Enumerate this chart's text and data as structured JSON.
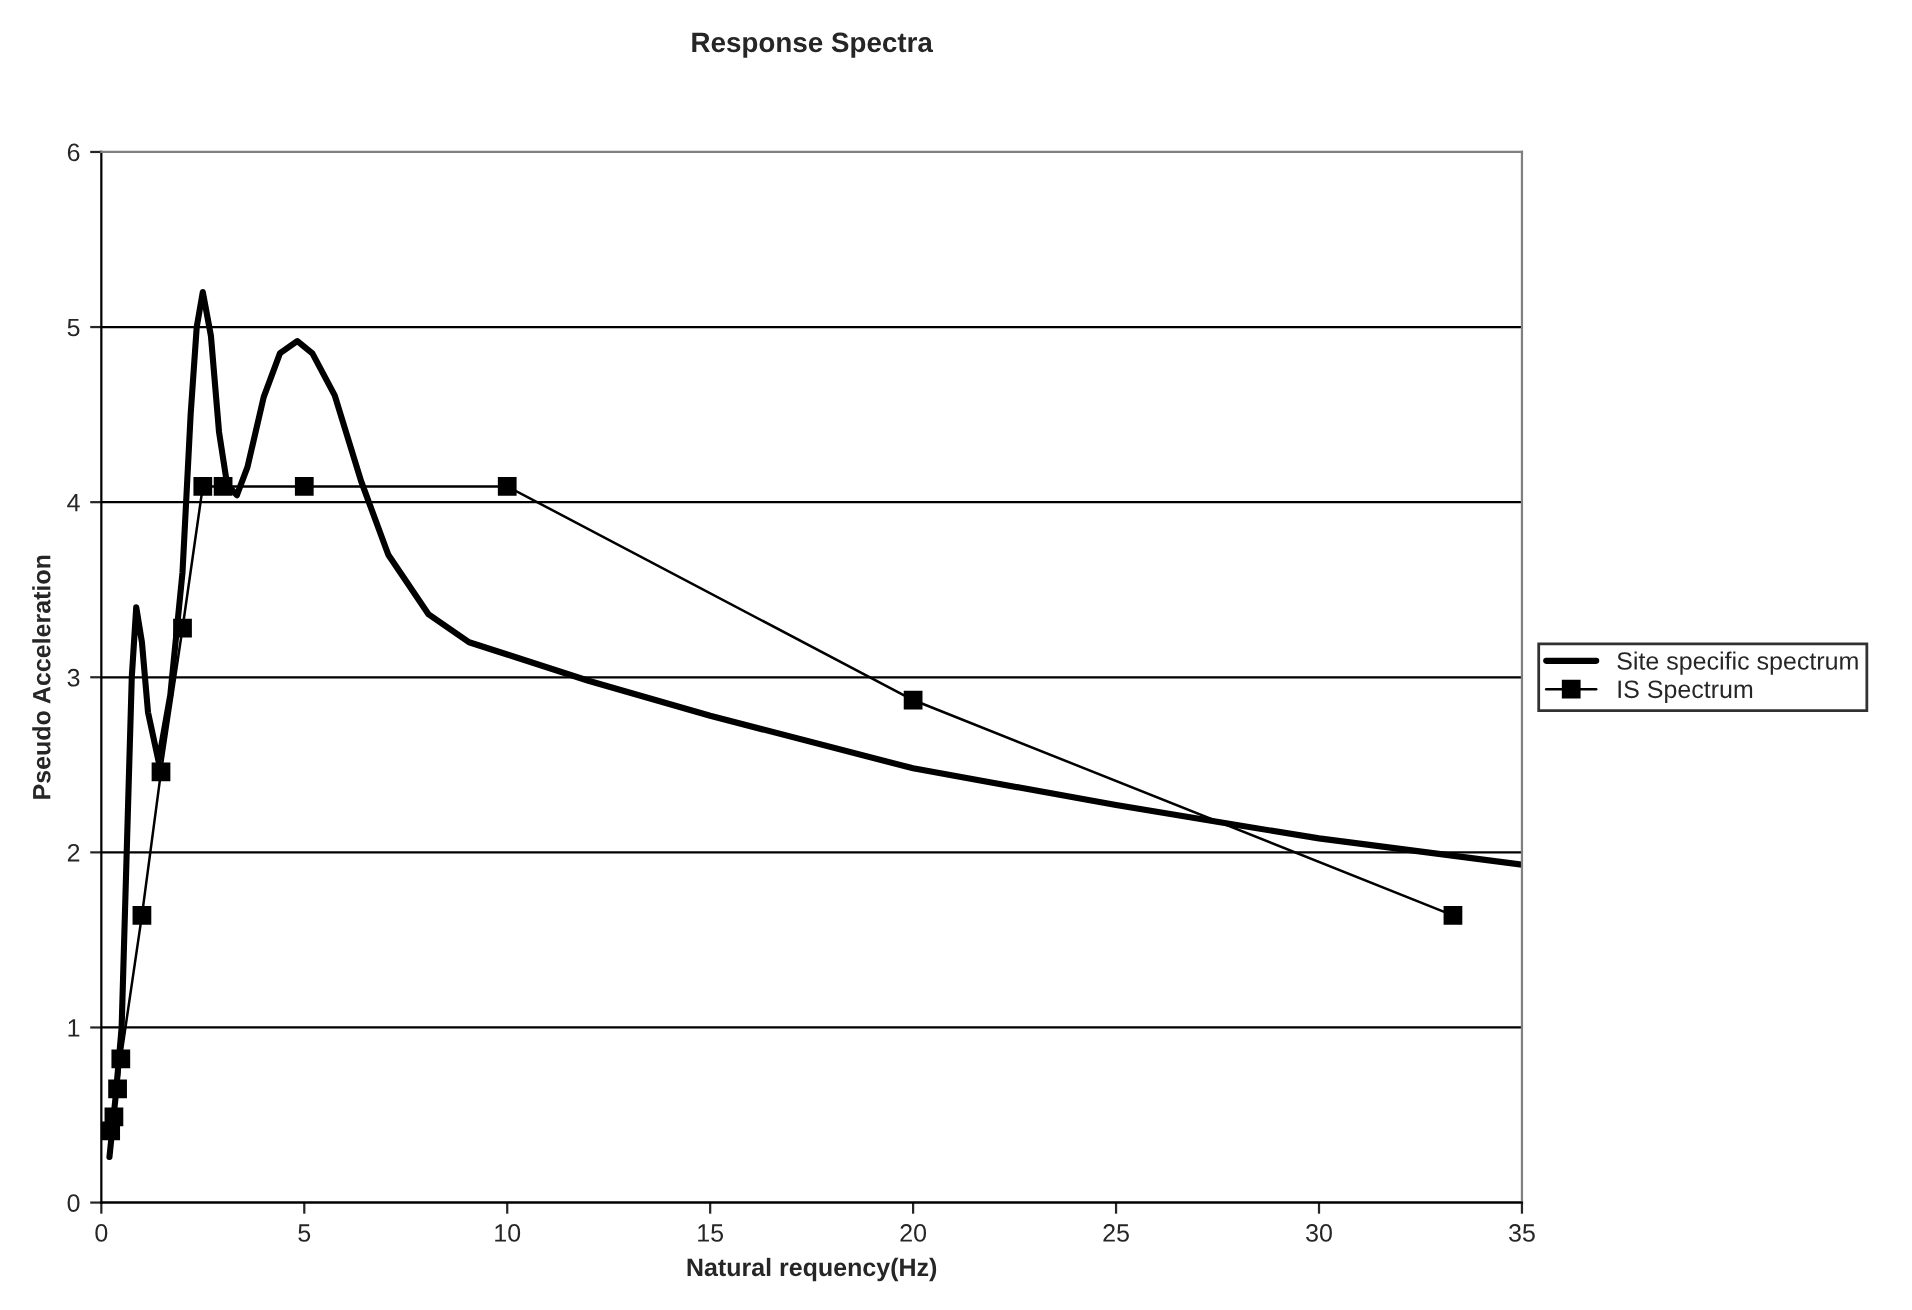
{
  "chart_data": {
    "type": "line",
    "title": "Response Spectra",
    "xlabel": "Natural requency(Hz)",
    "ylabel": "Pseudo Acceleration",
    "xlim": [
      0,
      35
    ],
    "xticks": [
      0,
      5,
      10,
      15,
      20,
      25,
      30,
      35
    ],
    "ylim": [
      0,
      6
    ],
    "yticks": [
      0,
      1,
      2,
      3,
      4,
      5,
      6
    ],
    "grid": "y",
    "legend": "right",
    "series": [
      {
        "name": "Site specific spectrum",
        "color": "#000000",
        "marker": "none",
        "x": [
          0.2,
          0.35,
          0.5,
          0.65,
          0.75,
          0.86,
          1.0,
          1.15,
          1.41,
          1.7,
          2.0,
          2.2,
          2.35,
          2.5,
          2.7,
          2.9,
          3.1,
          3.34,
          3.6,
          4.0,
          4.4,
          4.83,
          5.2,
          5.75,
          6.4,
          7.07,
          8.06,
          9.06,
          10,
          12,
          15,
          20,
          25,
          27.6,
          30,
          35
        ],
        "values": [
          0.26,
          0.6,
          1.0,
          2.2,
          3.0,
          3.4,
          3.2,
          2.8,
          2.52,
          2.9,
          3.6,
          4.5,
          5.0,
          5.2,
          4.95,
          4.4,
          4.1,
          4.04,
          4.2,
          4.6,
          4.85,
          4.92,
          4.85,
          4.61,
          4.12,
          3.7,
          3.36,
          3.2,
          3.13,
          2.98,
          2.78,
          2.48,
          2.27,
          2.17,
          2.08,
          1.93
        ]
      },
      {
        "name": "IS Spectrum",
        "color": "#000000",
        "marker": "square",
        "x": [
          0.23,
          0.31,
          0.4,
          0.48,
          1.0,
          1.47,
          2.0,
          2.5,
          3.0,
          5.0,
          10,
          20,
          33.3
        ],
        "values": [
          0.41,
          0.49,
          0.65,
          0.82,
          1.64,
          2.46,
          3.28,
          4.09,
          4.09,
          4.09,
          4.09,
          2.87,
          1.64
        ]
      }
    ]
  }
}
